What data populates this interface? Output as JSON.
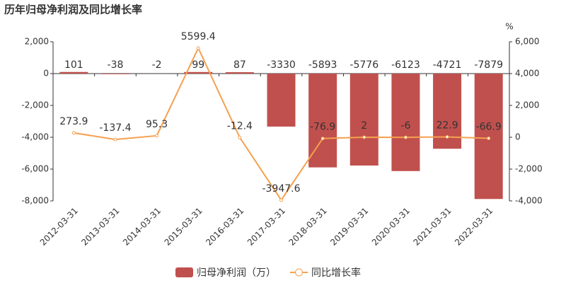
{
  "chart_data": {
    "type": "bar_line",
    "title": "历年归母净利润及同比增长率",
    "y2_unit": "%",
    "categories": [
      "2012-03-31",
      "2013-03-31",
      "2014-03-31",
      "2015-03-31",
      "2016-03-31",
      "2017-03-31",
      "2018-03-31",
      "2019-03-31",
      "2020-03-31",
      "2021-03-31",
      "2022-03-31"
    ],
    "series": [
      {
        "name": "归母净利润（万）",
        "type": "bar",
        "color": "#c0504d",
        "values": [
          101,
          -38,
          -2,
          99,
          87,
          -3330,
          -5893,
          -5776,
          -6123,
          -4721,
          -7879
        ]
      },
      {
        "name": "同比增长率",
        "type": "line",
        "axis": "y2",
        "color": "#f5a04f",
        "values": [
          273.9,
          -137.4,
          95.3,
          5599.4,
          -12.4,
          -3947.6,
          -76.9,
          2,
          -6,
          22.9,
          -66.9
        ]
      }
    ],
    "ylim": [
      -8000,
      2000
    ],
    "yticks": [
      {
        "value": -8000,
        "label": "-8,000"
      },
      {
        "value": -6000,
        "label": "-6,000"
      },
      {
        "value": -4000,
        "label": "-4,000"
      },
      {
        "value": -2000,
        "label": "-2,000"
      },
      0,
      {
        "value": 2000,
        "label": "2,000"
      }
    ],
    "y2lim": [
      -4000,
      6000
    ],
    "y2ticks": [
      {
        "value": -4000,
        "label": "-4,000"
      },
      {
        "value": -2000,
        "label": "-2,000"
      },
      0,
      {
        "value": 2000,
        "label": "2,000"
      },
      {
        "value": 4000,
        "label": "4,000"
      },
      {
        "value": 6000,
        "label": "6,000"
      }
    ],
    "grid": false,
    "legend": "bottom"
  }
}
